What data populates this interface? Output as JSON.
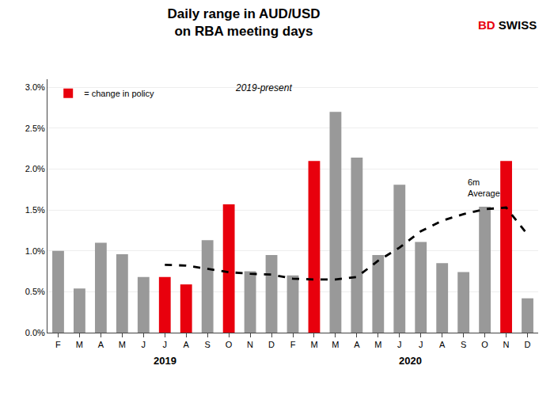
{
  "chart_data": {
    "type": "bar",
    "title": "Daily range in AUD/USD\non RBA meeting days",
    "subtitle": "2019-present",
    "categories": [
      "F",
      "M",
      "A",
      "M",
      "J",
      "J",
      "A",
      "S",
      "O",
      "N",
      "D",
      "F",
      "M",
      "M",
      "A",
      "M",
      "J",
      "J",
      "A",
      "S",
      "O",
      "N",
      "D"
    ],
    "series": [
      {
        "name": "= change in policy",
        "type": "bar",
        "color": "#e8000d",
        "values": [
          null,
          null,
          null,
          null,
          null,
          0.0068,
          0.0059,
          null,
          0.0157,
          null,
          null,
          null,
          0.021,
          null,
          null,
          null,
          null,
          null,
          null,
          null,
          null,
          0.021,
          null
        ]
      },
      {
        "type": "bar",
        "color": "#999999",
        "values": [
          0.01,
          0.0054,
          0.011,
          0.0096,
          0.0068,
          null,
          null,
          0.0113,
          null,
          0.0075,
          0.0095,
          0.007,
          null,
          0.027,
          0.0214,
          0.0095,
          0.0181,
          0.0111,
          0.0085,
          0.0074,
          0.0154,
          null,
          0.0042
        ]
      },
      {
        "type": "line",
        "color": "#000000",
        "line_style": "dashed",
        "values": [
          null,
          null,
          null,
          null,
          null,
          0.0083,
          0.0082,
          0.0078,
          0.0074,
          0.0072,
          0.0071,
          0.0066,
          0.0065,
          0.0065,
          0.0068,
          0.0088,
          0.0104,
          0.0124,
          0.0137,
          0.0145,
          0.0151,
          0.0153,
          0.012
        ]
      }
    ],
    "annotation": "6m\nAverage",
    "year_labels": [
      "2019",
      "2020"
    ],
    "logo": [
      {
        "text": "BD",
        "color": "#e8000d"
      },
      {
        "text": "SWISS",
        "color": "#000000"
      }
    ],
    "ylim": [
      0.0,
      0.031
    ],
    "yticks": [
      {
        "value": 0.0,
        "label": "0.0%"
      },
      {
        "value": 0.005,
        "label": "0.5%"
      },
      {
        "value": 0.01,
        "label": "1.0%"
      },
      {
        "value": 0.015,
        "label": "1.5%"
      },
      {
        "value": 0.02,
        "label": "2.0%"
      },
      {
        "value": 0.025,
        "label": "2.5%"
      },
      {
        "value": 0.03,
        "label": "3.0%"
      }
    ],
    "grid": true,
    "legend": "upper left"
  }
}
